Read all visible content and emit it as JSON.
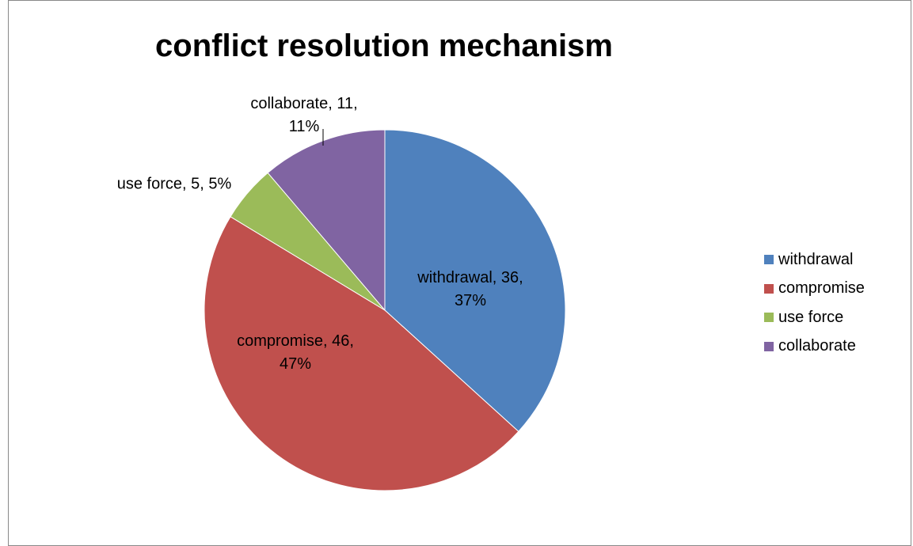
{
  "chart_data": {
    "type": "pie",
    "title": "conflict resolution mechanism",
    "categories": [
      "withdrawal",
      "compromise",
      "use force",
      "collaborate"
    ],
    "values": [
      36,
      46,
      5,
      11
    ],
    "percent_labels": [
      "37%",
      "47%",
      "5%",
      "11%"
    ],
    "colors": [
      "#4F81BD",
      "#C0504D",
      "#9BBB59",
      "#8064A2"
    ],
    "data_labels": [
      [
        "withdrawal, 36,",
        "37%"
      ],
      [
        "compromise, 46,",
        "47%"
      ],
      [
        "use force, 5, 5%"
      ],
      [
        "collaborate, 11,",
        "11%"
      ]
    ],
    "legend_position": "right"
  }
}
